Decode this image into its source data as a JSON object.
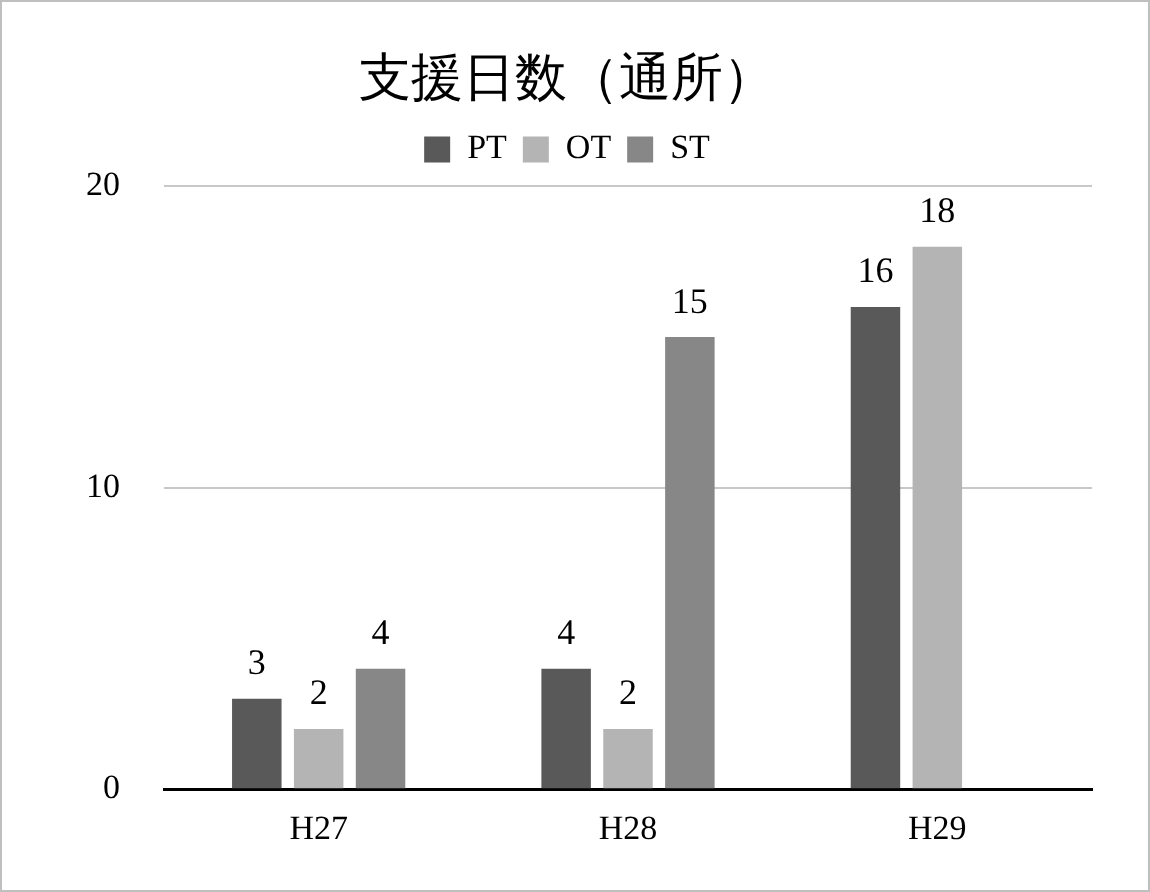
{
  "chart_data": {
    "type": "bar",
    "title": "支援日数（通所）",
    "categories": [
      "H27",
      "H28",
      "H29"
    ],
    "series": [
      {
        "name": "PT",
        "color": "#595959",
        "values": [
          3,
          4,
          16
        ]
      },
      {
        "name": "OT",
        "color": "#b4b4b4",
        "values": [
          2,
          2,
          18
        ]
      },
      {
        "name": "ST",
        "color": "#878787",
        "values": [
          4,
          15,
          null
        ]
      }
    ],
    "ylim": [
      0,
      20
    ],
    "yticks": [
      0,
      10,
      20
    ],
    "grid": "y",
    "legend": "top",
    "data_labels": true
  }
}
